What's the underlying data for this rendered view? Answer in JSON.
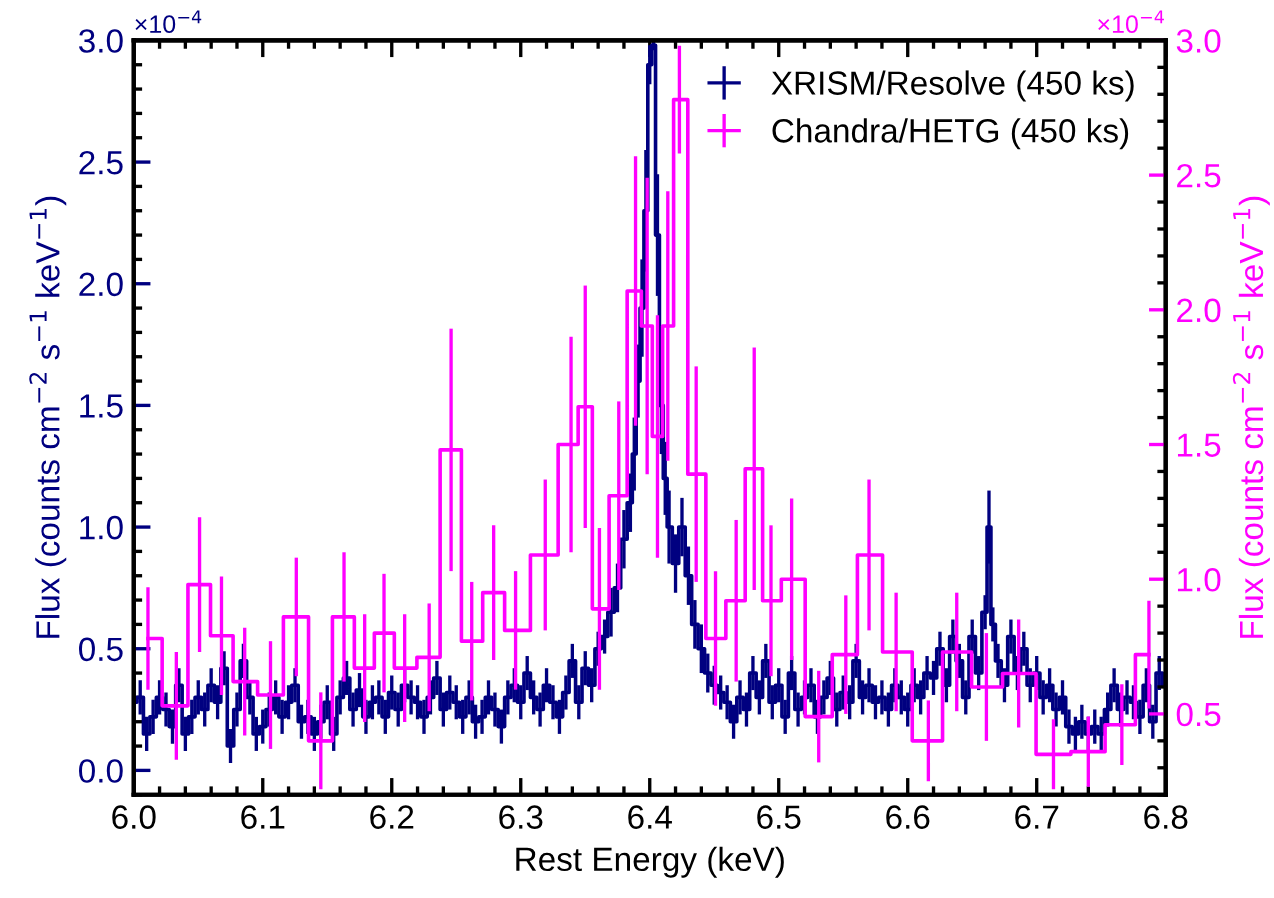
{
  "chart_data": {
    "type": "step",
    "xlabel": "Rest Energy (keV)",
    "ylabel": "Flux (counts cm$^{−2}$ s$^{−1}$ keV$^{−1}$)",
    "y2label": "Flux (counts cm$^{−2}$ s$^{−1}$ keV$^{−1}$)",
    "annotations": [
      "×10$^{−4}$",
      "×10$^{−4}$"
    ],
    "xlim": [
      6.0,
      6.8
    ],
    "xticks": [
      {
        "value": 6.0,
        "label": "6.0"
      },
      6.1,
      6.2,
      6.3,
      6.4,
      6.5,
      6.6,
      6.7,
      6.8
    ],
    "ylim": [
      -0.1,
      3.0
    ],
    "yticks": [
      {
        "value": 0,
        "label": "0.0"
      },
      0.5,
      {
        "value": 1,
        "label": "1.0"
      },
      1.5,
      {
        "value": 2,
        "label": "2.0"
      },
      2.5,
      {
        "value": 3,
        "label": "3.0"
      }
    ],
    "y2lim": [
      0.2,
      3.0
    ],
    "y2ticks": [
      0.5,
      {
        "value": 1,
        "label": "1.0"
      },
      1.5,
      {
        "value": 2,
        "label": "2.0"
      },
      2.5,
      {
        "value": 3,
        "label": "3.0"
      }
    ],
    "grid": false,
    "legend": "top right",
    "series": [
      {
        "name": "XRISM/Resolve (450 ks)",
        "color": "#000080",
        "x": [
          6.0,
          6.005,
          6.01,
          6.015,
          6.02,
          6.025,
          6.03,
          6.035,
          6.04,
          6.045,
          6.05,
          6.055,
          6.06,
          6.065,
          6.07,
          6.075,
          6.08,
          6.085,
          6.09,
          6.095,
          6.1,
          6.105,
          6.11,
          6.115,
          6.12,
          6.125,
          6.13,
          6.135,
          6.14,
          6.145,
          6.15,
          6.155,
          6.16,
          6.165,
          6.17,
          6.175,
          6.18,
          6.185,
          6.19,
          6.195,
          6.2,
          6.205,
          6.21,
          6.215,
          6.22,
          6.225,
          6.23,
          6.235,
          6.24,
          6.245,
          6.25,
          6.255,
          6.26,
          6.265,
          6.27,
          6.275,
          6.28,
          6.285,
          6.29,
          6.295,
          6.3,
          6.305,
          6.31,
          6.315,
          6.32,
          6.325,
          6.33,
          6.335,
          6.34,
          6.345,
          6.35,
          6.355,
          6.36,
          6.365,
          6.37,
          6.375,
          6.38,
          6.385,
          6.388,
          6.391,
          6.394,
          6.397,
          6.4,
          6.403,
          6.406,
          6.409,
          6.412,
          6.415,
          6.42,
          6.425,
          6.43,
          6.435,
          6.44,
          6.445,
          6.45,
          6.455,
          6.46,
          6.465,
          6.47,
          6.475,
          6.48,
          6.485,
          6.49,
          6.495,
          6.5,
          6.505,
          6.51,
          6.515,
          6.52,
          6.525,
          6.53,
          6.535,
          6.54,
          6.545,
          6.55,
          6.555,
          6.56,
          6.565,
          6.57,
          6.575,
          6.58,
          6.585,
          6.59,
          6.595,
          6.6,
          6.605,
          6.61,
          6.615,
          6.62,
          6.625,
          6.63,
          6.635,
          6.64,
          6.645,
          6.65,
          6.655,
          6.66,
          6.663,
          6.666,
          6.67,
          6.675,
          6.68,
          6.685,
          6.69,
          6.695,
          6.7,
          6.705,
          6.71,
          6.715,
          6.72,
          6.725,
          6.73,
          6.735,
          6.74,
          6.745,
          6.75,
          6.755,
          6.76,
          6.765,
          6.77,
          6.775,
          6.78,
          6.785,
          6.79,
          6.795,
          6.8
        ],
        "values": [
          0.28,
          0.3,
          0.15,
          0.22,
          0.3,
          0.25,
          0.18,
          0.35,
          0.15,
          0.22,
          0.3,
          0.25,
          0.35,
          0.28,
          0.42,
          0.1,
          0.25,
          0.45,
          0.3,
          0.15,
          0.18,
          0.25,
          0.3,
          0.22,
          0.28,
          0.35,
          0.2,
          0.22,
          0.15,
          0.2,
          0.28,
          0.15,
          0.3,
          0.38,
          0.25,
          0.33,
          0.22,
          0.28,
          0.3,
          0.22,
          0.32,
          0.25,
          0.35,
          0.3,
          0.28,
          0.22,
          0.3,
          0.38,
          0.25,
          0.32,
          0.28,
          0.22,
          0.3,
          0.2,
          0.22,
          0.3,
          0.25,
          0.18,
          0.3,
          0.35,
          0.28,
          0.4,
          0.3,
          0.25,
          0.35,
          0.28,
          0.22,
          0.32,
          0.45,
          0.28,
          0.42,
          0.35,
          0.5,
          0.55,
          0.65,
          0.75,
          0.95,
          1.1,
          1.3,
          1.6,
          1.9,
          2.3,
          2.9,
          2.98,
          2.2,
          1.5,
          1.2,
          1.0,
          0.85,
          1.0,
          0.8,
          0.6,
          0.5,
          0.4,
          0.35,
          0.32,
          0.28,
          0.2,
          0.3,
          0.25,
          0.4,
          0.3,
          0.45,
          0.28,
          0.35,
          0.22,
          0.4,
          0.25,
          0.3,
          0.35,
          0.22,
          0.3,
          0.38,
          0.25,
          0.32,
          0.28,
          0.45,
          0.3,
          0.35,
          0.28,
          0.3,
          0.25,
          0.35,
          0.3,
          0.25,
          0.35,
          0.3,
          0.4,
          0.38,
          0.5,
          0.35,
          0.55,
          0.45,
          0.3,
          0.55,
          0.4,
          0.65,
          1.0,
          0.6,
          0.45,
          0.35,
          0.55,
          0.4,
          0.5,
          0.35,
          0.4,
          0.3,
          0.35,
          0.25,
          0.3,
          0.18,
          0.15,
          0.2,
          0.15,
          0.18,
          0.15,
          0.25,
          0.35,
          0.25,
          0.3,
          0.28,
          0.22,
          0.35,
          0.2,
          0.4,
          0.35
        ],
        "errors": [
          null,
          0.07,
          0.07,
          0.07,
          0.07,
          0.07,
          0.07,
          0.07,
          0.07,
          0.07,
          0.07,
          0.07,
          0.07,
          0.07,
          0.07,
          0.07,
          0.07,
          0.07,
          0.07,
          0.07,
          0.07,
          0.07,
          0.07,
          0.07,
          0.07,
          0.07,
          0.07,
          0.07,
          0.07,
          0.07,
          0.07,
          0.07,
          0.07,
          0.07,
          0.07,
          0.07,
          0.07,
          0.07,
          0.07,
          0.07,
          0.07,
          0.07,
          0.07,
          0.07,
          0.07,
          0.07,
          0.07,
          0.07,
          0.07,
          0.07,
          0.07,
          0.07,
          0.07,
          0.07,
          0.07,
          0.07,
          0.07,
          0.07,
          0.07,
          0.07,
          0.07,
          0.07,
          0.07,
          0.07,
          0.07,
          0.07,
          0.07,
          0.07,
          0.07,
          0.07,
          0.07,
          0.07,
          0.07,
          0.07,
          0.1,
          0.1,
          0.12,
          0.12,
          0.15,
          0.15,
          0.2,
          0.25,
          0.08,
          0.02,
          0.25,
          0.2,
          0.15,
          0.15,
          0.12,
          0.12,
          0.12,
          0.1,
          0.1,
          0.08,
          0.08,
          0.07,
          0.07,
          0.07,
          0.07,
          0.07,
          0.07,
          0.07,
          0.07,
          0.07,
          0.07,
          0.07,
          0.07,
          0.07,
          0.07,
          0.07,
          0.07,
          0.07,
          0.07,
          0.07,
          0.07,
          0.07,
          0.07,
          0.07,
          0.07,
          0.07,
          0.07,
          0.07,
          0.07,
          0.07,
          0.07,
          0.07,
          0.07,
          0.07,
          0.07,
          0.07,
          0.07,
          0.07,
          0.07,
          0.07,
          0.07,
          0.07,
          0.07,
          0.15,
          0.07,
          0.07,
          0.07,
          0.07,
          0.07,
          0.07,
          0.07,
          0.07,
          0.07,
          0.07,
          0.07,
          0.07,
          0.07,
          0.07,
          0.07,
          0.07,
          0.07,
          0.07,
          0.07,
          0.07,
          0.07,
          0.07,
          0.07,
          0.07,
          0.07,
          0.07,
          0.07,
          0.07
        ]
      },
      {
        "name": "Chandra/HETG (450 ks)",
        "color": "#ff00ff",
        "axis": "y2",
        "x": [
          6.011,
          6.033,
          6.051,
          6.068,
          6.086,
          6.106,
          6.126,
          6.145,
          6.163,
          6.179,
          6.194,
          6.21,
          6.229,
          6.246,
          6.262,
          6.279,
          6.296,
          6.319,
          6.339,
          6.35,
          6.361,
          6.376,
          6.389,
          6.398,
          6.406,
          6.414,
          6.423,
          6.436,
          6.451,
          6.467,
          6.481,
          6.494,
          6.51,
          6.531,
          6.552,
          6.57,
          6.591,
          6.616,
          6.638,
          6.661,
          6.686,
          6.713,
          6.74,
          6.766,
          6.787
        ],
        "values": [
          0.78,
          0.53,
          0.98,
          0.79,
          0.62,
          0.57,
          0.86,
          0.4,
          0.86,
          0.67,
          0.8,
          0.67,
          0.71,
          1.48,
          0.77,
          0.95,
          0.81,
          1.09,
          1.5,
          1.64,
          0.89,
          1.31,
          2.07,
          1.94,
          1.53,
          1.94,
          2.78,
          1.39,
          0.78,
          0.92,
          1.41,
          0.92,
          1.0,
          0.49,
          0.72,
          1.09,
          0.73,
          0.4,
          0.73,
          0.6,
          0.65,
          0.35,
          0.36,
          0.46,
          0.72
        ],
        "errors": [
          0.19,
          0.2,
          0.25,
          0.22,
          0.2,
          0.2,
          0.22,
          0.18,
          0.24,
          0.2,
          0.22,
          0.2,
          0.2,
          0.45,
          0.22,
          0.25,
          0.22,
          0.28,
          0.4,
          0.45,
          0.3,
          0.35,
          0.5,
          0.55,
          0.45,
          0.5,
          0.2,
          0.4,
          0.25,
          0.3,
          0.45,
          0.28,
          0.3,
          0.17,
          0.22,
          0.28,
          0.22,
          0.15,
          0.22,
          0.2,
          0.2,
          0.13,
          0.13,
          0.15,
          0.2
        ]
      }
    ]
  }
}
